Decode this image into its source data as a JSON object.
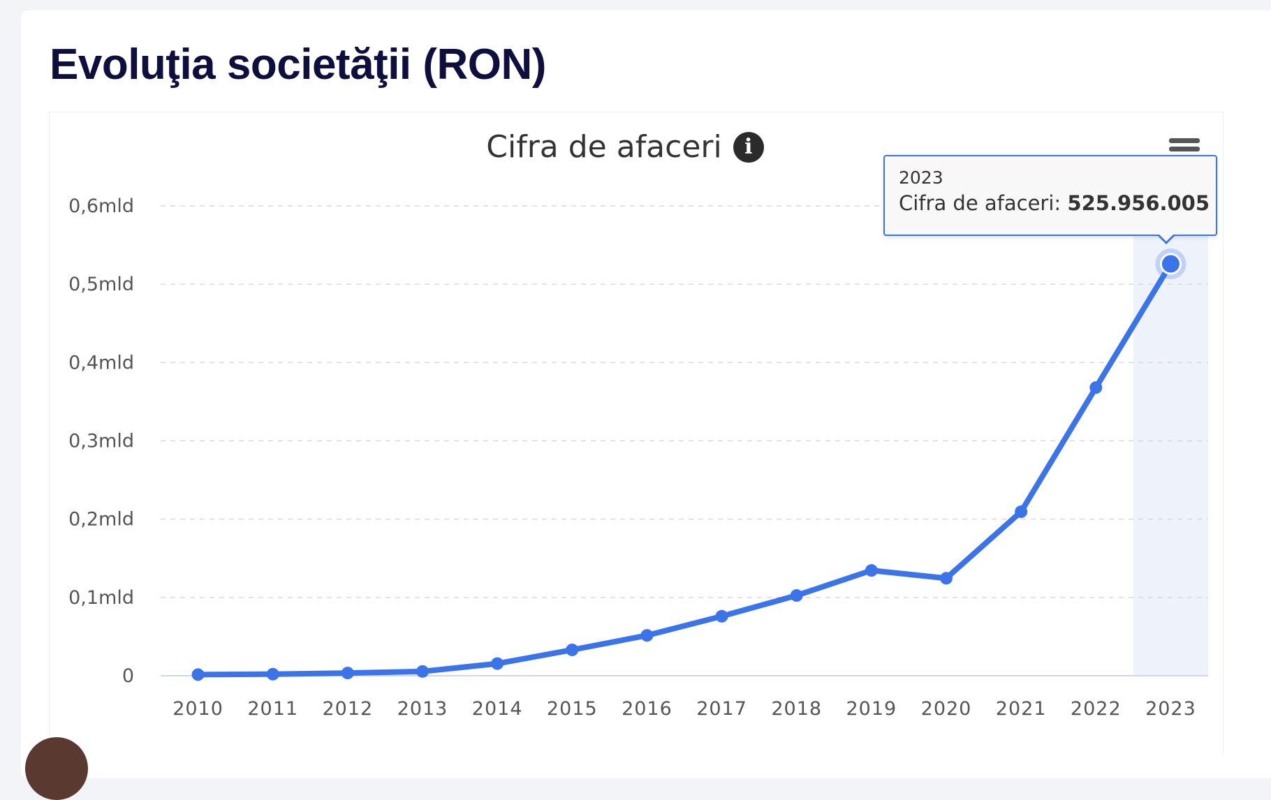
{
  "section_title": "Evoluţia societăţii (RON)",
  "chart_data": {
    "type": "line",
    "title": "Cifra de afaceri",
    "xlabel": "",
    "ylabel": "",
    "categories": [
      "2010",
      "2011",
      "2012",
      "2013",
      "2014",
      "2015",
      "2016",
      "2017",
      "2018",
      "2019",
      "2020",
      "2021",
      "2022",
      "2023"
    ],
    "series": [
      {
        "name": "Cifra de afaceri",
        "values": [
          1500000,
          2000000,
          3500000,
          5500000,
          15500000,
          33000000,
          51500000,
          76000000,
          102500000,
          134500000,
          124500000,
          209500000,
          368000000,
          525956005
        ]
      }
    ],
    "ylim": [
      0,
      600000000
    ],
    "y_ticks": [
      0,
      100000000,
      200000000,
      300000000,
      400000000,
      500000000,
      600000000
    ],
    "y_tick_labels": [
      "0",
      "0,1mld",
      "0,2mld",
      "0,3mld",
      "0,4mld",
      "0,5mld",
      "0,6mld"
    ],
    "grid": true,
    "legend": "none",
    "color": "#3b73e8",
    "highlight_index": 13
  },
  "tooltip": {
    "year": "2023",
    "label": "Cifra de afaceri: ",
    "value": "525.956.005"
  },
  "icons": {
    "info": "info-icon",
    "menu": "hamburger-menu-icon"
  }
}
